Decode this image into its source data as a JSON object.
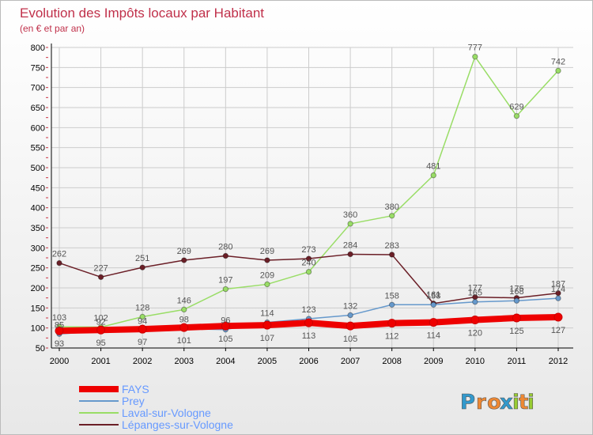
{
  "chart_data": {
    "type": "line",
    "title": "Evolution des Impôts locaux par Habitant",
    "subtitle": "(en € et par an)",
    "xlabel": "",
    "ylabel": "",
    "categories": [
      "2000",
      "2001",
      "2002",
      "2003",
      "2004",
      "2005",
      "2006",
      "2007",
      "2008",
      "2009",
      "2010",
      "2011",
      "2012"
    ],
    "ylim": [
      50,
      800
    ],
    "yticks": [
      50,
      100,
      150,
      200,
      250,
      300,
      350,
      400,
      450,
      500,
      550,
      600,
      650,
      700,
      750,
      800
    ],
    "grid": true,
    "legend_position": "bottom-left",
    "series": [
      {
        "name": "FAYS",
        "color": "#ee0000",
        "values": [
          93,
          95,
          97,
          101,
          105,
          107,
          113,
          105,
          112,
          114,
          120,
          125,
          127
        ]
      },
      {
        "name": "Prey",
        "color": "#6699cc",
        "values": [
          85,
          92,
          94,
          98,
          96,
          114,
          123,
          132,
          158,
          158,
          165,
          168,
          174
        ]
      },
      {
        "name": "Laval-sur-Vologne",
        "color": "#99dd66",
        "values": [
          103,
          102,
          128,
          146,
          197,
          209,
          240,
          360,
          380,
          481,
          777,
          629,
          742
        ]
      },
      {
        "name": "Lépanges-sur-Vologne",
        "color": "#6b1f27",
        "values": [
          262,
          227,
          251,
          269,
          280,
          269,
          273,
          284,
          283,
          161,
          177,
          175,
          187
        ]
      }
    ]
  },
  "brand": {
    "text": "Proxiti",
    "letters": [
      "P",
      "r",
      "o",
      "x",
      "i",
      "t",
      "i"
    ],
    "colors": [
      "#3399cc",
      "#ee8833",
      "#ee8833",
      "#3399cc",
      "#99cc33",
      "#ee8833",
      "#99cc33"
    ]
  },
  "colors": {
    "title": "#c0304a",
    "subtitle": "#c0304a",
    "axis": "#000000",
    "grid": "#cccccc",
    "label": "#555555",
    "legend_text": "#6699ff"
  }
}
